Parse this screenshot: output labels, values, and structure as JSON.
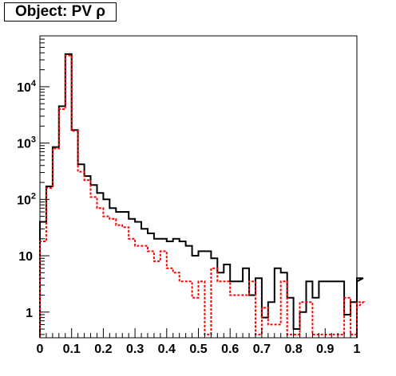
{
  "chart_data": {
    "type": "histogram",
    "title": "Object: PV ρ",
    "xlim": [
      0,
      1
    ],
    "ylim": [
      0.35,
      80000
    ],
    "y_scale": "log",
    "x_ticks": [
      "0",
      "0.1",
      "0.2",
      "0.3",
      "0.4",
      "0.5",
      "0.6",
      "0.7",
      "0.8",
      "0.9",
      "1"
    ],
    "y_ticks": [
      {
        "value": 1,
        "base": "1",
        "exp": ""
      },
      {
        "value": 10,
        "base": "10",
        "exp": ""
      },
      {
        "value": 100,
        "base": "10",
        "exp": "2"
      },
      {
        "value": 1000,
        "base": "10",
        "exp": "3"
      },
      {
        "value": 10000,
        "base": "10",
        "exp": "4"
      }
    ],
    "bin_width": 0.02,
    "grid": false,
    "series": [
      {
        "color": "#000000",
        "style": "solid",
        "values": [
          40,
          170,
          850,
          4500,
          38000,
          1700,
          420,
          260,
          180,
          130,
          100,
          70,
          60,
          60,
          45,
          40,
          30,
          25,
          20,
          20,
          18,
          20,
          18,
          15,
          10,
          12,
          12,
          9,
          5,
          7,
          3.5,
          3.5,
          6,
          2,
          4,
          0.8,
          1.5,
          6,
          5,
          1.8,
          0.5,
          1,
          3.5,
          1.8,
          3.5,
          3.5,
          3.5,
          3.5,
          0.9,
          1.5,
          3.5,
          4
        ]
      },
      {
        "color": "#ff0000",
        "style": "dashed",
        "values": [
          18,
          160,
          800,
          4000,
          36000,
          1650,
          310,
          220,
          110,
          70,
          50,
          45,
          35,
          32,
          20,
          15,
          15,
          12,
          8,
          12,
          6,
          5,
          3.5,
          3.5,
          1.8,
          3.5,
          0.4,
          6,
          3.5,
          3.5,
          2,
          2,
          2,
          3.5,
          0.4,
          1.2,
          0.6,
          0.6,
          3.5,
          0.4,
          0.4,
          1.5,
          1.5,
          0.4,
          0.4,
          0.4,
          0.4,
          0.4,
          1.8,
          0.4,
          1.2,
          1.5
        ]
      }
    ]
  }
}
